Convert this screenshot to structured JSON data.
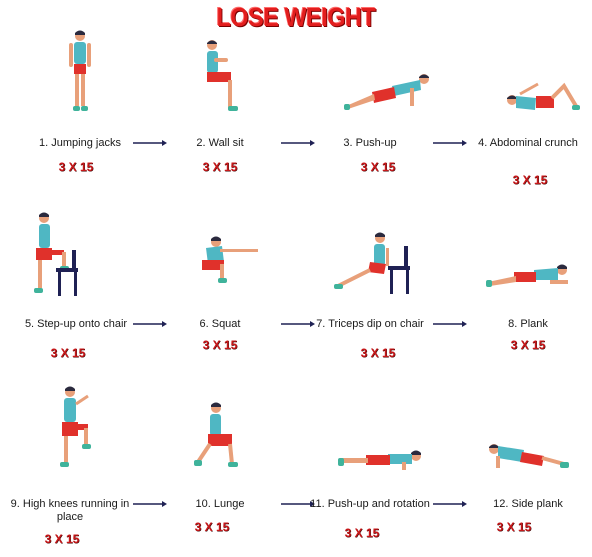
{
  "title": "LOSE WEIGHT",
  "colors": {
    "title": "#e21e1e",
    "shirt": "#4fb7c3",
    "shorts": "#e0312b",
    "skin": "#e8a07a",
    "hair": "#2b2a3e",
    "shoe": "#3fb39b",
    "chair": "#1f2154",
    "arrow": "#1f2154"
  },
  "exercises": [
    {
      "label": "1. Jumping jacks",
      "reps": "3 X 15",
      "icon": "standing-figure-icon"
    },
    {
      "label": "2. Wall sit",
      "reps": "3 X 15",
      "icon": "wall-sit-figure-icon"
    },
    {
      "label": "3. Push-up",
      "reps": "3 X 15",
      "icon": "push-up-figure-icon"
    },
    {
      "label": "4. Abdominal crunch",
      "reps": "3 X 15",
      "icon": "crunch-figure-icon"
    },
    {
      "label": "5. Step-up onto chair",
      "reps": "3 X 15",
      "icon": "step-up-figure-icon"
    },
    {
      "label": "6. Squat",
      "reps": "3 X 15",
      "icon": "squat-figure-icon"
    },
    {
      "label": "7. Triceps dip on chair",
      "reps": "3 X 15",
      "icon": "triceps-dip-figure-icon"
    },
    {
      "label": "8. Plank",
      "reps": "3 X 15",
      "icon": "plank-figure-icon"
    },
    {
      "label": "9. High knees running in place",
      "reps": "3 X 15",
      "icon": "high-knees-figure-icon"
    },
    {
      "label": "10. Lunge",
      "reps": "3 X 15",
      "icon": "lunge-figure-icon"
    },
    {
      "label": "11. Push-up and rotation",
      "reps": "3 X 15",
      "icon": "push-up-rotation-figure-icon"
    },
    {
      "label": "12. Side plank",
      "reps": "3 X 15",
      "icon": "side-plank-figure-icon"
    }
  ]
}
